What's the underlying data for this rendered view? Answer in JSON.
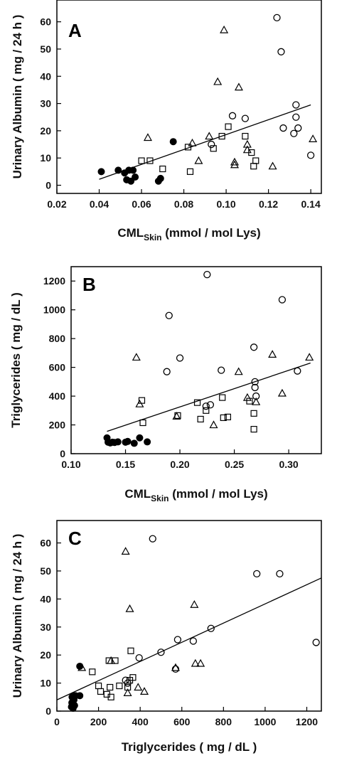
{
  "chart_data": [
    {
      "type": "scatter",
      "panel_label": "A",
      "xlabel_main": "CML",
      "xlabel_sub": "Skin",
      "xlabel_rest": " (mmol / mol Lys)",
      "ylabel": "Urinary Albumin ( mg / 24 h )",
      "xlim": [
        0.02,
        0.145
      ],
      "ylim": [
        -3,
        68
      ],
      "xticks": [
        "0.02",
        "0.04",
        "0.06",
        "0.08",
        "0.10",
        "0.12",
        "0.14"
      ],
      "yticks": [
        "0",
        "10",
        "20",
        "30",
        "40",
        "50",
        "60"
      ],
      "regression": {
        "x": [
          0.04,
          0.14
        ],
        "y": [
          2.2,
          29.5
        ]
      },
      "series": [
        {
          "marker": "filled-circle",
          "points": [
            [
              0.041,
              5
            ],
            [
              0.049,
              5.5
            ],
            [
              0.052,
              4.5
            ],
            [
              0.053,
              2
            ],
            [
              0.054,
              5.5
            ],
            [
              0.055,
              1.5
            ],
            [
              0.056,
              5.5
            ],
            [
              0.057,
              3
            ],
            [
              0.068,
              1.5
            ],
            [
              0.069,
              2.5
            ],
            [
              0.075,
              16
            ]
          ]
        },
        {
          "marker": "open-circle",
          "points": [
            [
              0.093,
              15
            ],
            [
              0.103,
              25.5
            ],
            [
              0.109,
              24.5
            ],
            [
              0.124,
              61.5
            ],
            [
              0.126,
              49
            ],
            [
              0.127,
              21
            ],
            [
              0.132,
              19
            ],
            [
              0.133,
              29.5
            ],
            [
              0.133,
              25
            ],
            [
              0.134,
              21
            ],
            [
              0.14,
              11
            ]
          ]
        },
        {
          "marker": "open-triangle",
          "points": [
            [
              0.063,
              17.5
            ],
            [
              0.084,
              15.5
            ],
            [
              0.087,
              9
            ],
            [
              0.092,
              18
            ],
            [
              0.096,
              38
            ],
            [
              0.099,
              57
            ],
            [
              0.104,
              8.5
            ],
            [
              0.104,
              7.5
            ],
            [
              0.106,
              36
            ],
            [
              0.11,
              15
            ],
            [
              0.11,
              13
            ],
            [
              0.122,
              7
            ],
            [
              0.141,
              17
            ]
          ]
        },
        {
          "marker": "open-square",
          "points": [
            [
              0.06,
              9
            ],
            [
              0.064,
              9
            ],
            [
              0.07,
              6
            ],
            [
              0.082,
              14
            ],
            [
              0.083,
              5
            ],
            [
              0.094,
              13.5
            ],
            [
              0.098,
              18
            ],
            [
              0.101,
              21.5
            ],
            [
              0.109,
              18
            ],
            [
              0.112,
              12
            ],
            [
              0.113,
              7
            ],
            [
              0.114,
              9
            ]
          ]
        }
      ]
    },
    {
      "type": "scatter",
      "panel_label": "B",
      "xlabel_main": "CML",
      "xlabel_sub": "Skin",
      "xlabel_rest": " (mmol / mol Lys)",
      "ylabel": "Triglycerides ( mg / dL )",
      "xlim": [
        0.1,
        0.33
      ],
      "ylim": [
        0,
        1300
      ],
      "xticks": [
        "0.10",
        "0.15",
        "0.20",
        "0.25",
        "0.30"
      ],
      "yticks": [
        "0",
        "200",
        "400",
        "600",
        "800",
        "1000",
        "1200"
      ],
      "regression": {
        "x": [
          0.133,
          0.32
        ],
        "y": [
          155,
          630
        ]
      },
      "series": [
        {
          "marker": "filled-circle",
          "points": [
            [
              0.133,
              110
            ],
            [
              0.134,
              80
            ],
            [
              0.136,
              75
            ],
            [
              0.138,
              80
            ],
            [
              0.14,
              78
            ],
            [
              0.143,
              82
            ],
            [
              0.15,
              80
            ],
            [
              0.152,
              85
            ],
            [
              0.158,
              72
            ],
            [
              0.163,
              110
            ],
            [
              0.17,
              82
            ]
          ]
        },
        {
          "marker": "open-circle",
          "points": [
            [
              0.188,
              570
            ],
            [
              0.19,
              960
            ],
            [
              0.2,
              665
            ],
            [
              0.224,
              330
            ],
            [
              0.225,
              1245
            ],
            [
              0.228,
              340
            ],
            [
              0.238,
              580
            ],
            [
              0.268,
              740
            ],
            [
              0.269,
              500
            ],
            [
              0.269,
              460
            ],
            [
              0.27,
              400
            ],
            [
              0.294,
              1070
            ],
            [
              0.308,
              575
            ]
          ]
        },
        {
          "marker": "open-triangle",
          "points": [
            [
              0.16,
              670
            ],
            [
              0.163,
              345
            ],
            [
              0.197,
              260
            ],
            [
              0.231,
              200
            ],
            [
              0.254,
              570
            ],
            [
              0.262,
              390
            ],
            [
              0.27,
              360
            ],
            [
              0.285,
              690
            ],
            [
              0.294,
              420
            ],
            [
              0.319,
              670
            ]
          ]
        },
        {
          "marker": "open-square",
          "points": [
            [
              0.165,
              370
            ],
            [
              0.166,
              215
            ],
            [
              0.198,
              265
            ],
            [
              0.216,
              355
            ],
            [
              0.219,
              240
            ],
            [
              0.224,
              300
            ],
            [
              0.239,
              390
            ],
            [
              0.24,
              250
            ],
            [
              0.244,
              255
            ],
            [
              0.264,
              365
            ],
            [
              0.268,
              280
            ],
            [
              0.268,
              170
            ]
          ]
        }
      ]
    },
    {
      "type": "scatter",
      "panel_label": "C",
      "xlabel_main": "Triglycerides ( mg / dL )",
      "xlabel_sub": "",
      "xlabel_rest": "",
      "ylabel": "Urinary Albumin ( mg / 24 h )",
      "xlim": [
        0,
        1270
      ],
      "ylim": [
        0,
        68
      ],
      "xticks": [
        "0",
        "200",
        "400",
        "600",
        "800",
        "1000",
        "1200"
      ],
      "yticks": [
        "0",
        "10",
        "20",
        "30",
        "40",
        "50",
        "60"
      ],
      "regression": {
        "x": [
          0,
          1270
        ],
        "y": [
          4,
          47.5
        ]
      },
      "series": [
        {
          "marker": "filled-circle",
          "points": [
            [
              70,
              1.5
            ],
            [
              72,
              3
            ],
            [
              73,
              5
            ],
            [
              75,
              2.5
            ],
            [
              78,
              1
            ],
            [
              80,
              5.5
            ],
            [
              82,
              4
            ],
            [
              85,
              2
            ],
            [
              90,
              5.5
            ],
            [
              110,
              5.5
            ],
            [
              110,
              16
            ]
          ]
        },
        {
          "marker": "open-circle",
          "points": [
            [
              330,
              11
            ],
            [
              340,
              10
            ],
            [
              395,
              19
            ],
            [
              460,
              61.5
            ],
            [
              500,
              21
            ],
            [
              570,
              15
            ],
            [
              580,
              25.5
            ],
            [
              655,
              25
            ],
            [
              740,
              29.5
            ],
            [
              960,
              49
            ],
            [
              1070,
              49
            ],
            [
              1245,
              24.5
            ]
          ]
        },
        {
          "marker": "open-triangle",
          "points": [
            [
              120,
              15.5
            ],
            [
              260,
              18
            ],
            [
              330,
              57
            ],
            [
              340,
              6.5
            ],
            [
              350,
              36.5
            ],
            [
              390,
              8.5
            ],
            [
              420,
              7
            ],
            [
              570,
              15.5
            ],
            [
              660,
              38
            ],
            [
              665,
              17
            ],
            [
              690,
              17
            ]
          ]
        },
        {
          "marker": "open-square",
          "points": [
            [
              170,
              14
            ],
            [
              200,
              9
            ],
            [
              210,
              7
            ],
            [
              240,
              6
            ],
            [
              250,
              18
            ],
            [
              255,
              8.5
            ],
            [
              260,
              5
            ],
            [
              280,
              18
            ],
            [
              300,
              9
            ],
            [
              340,
              8.5
            ],
            [
              350,
              11
            ],
            [
              355,
              21.5
            ],
            [
              365,
              12
            ]
          ]
        }
      ]
    }
  ]
}
